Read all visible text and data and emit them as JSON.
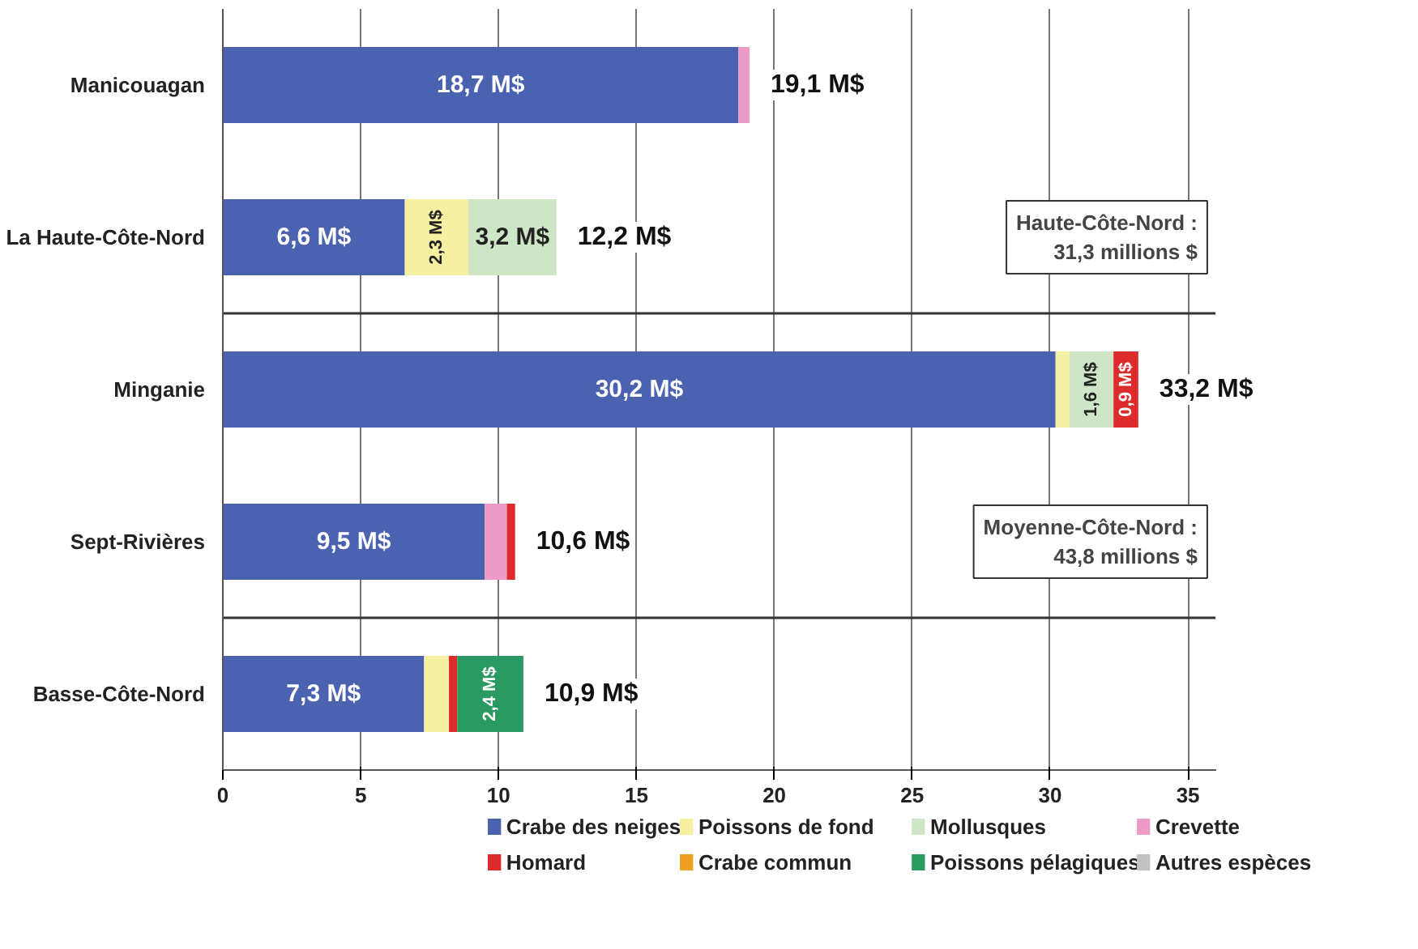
{
  "chart_data": {
    "type": "bar",
    "orientation": "horizontal",
    "stacked": true,
    "categories": [
      "Manicouagan",
      "La Haute-Côte-Nord",
      "Minganie",
      "Sept-Rivières",
      "Basse-Côte-Nord"
    ],
    "series": [
      {
        "name": "Crabe des neiges",
        "color": "#4a62b0",
        "values": [
          18.7,
          6.6,
          30.2,
          9.5,
          7.3
        ],
        "value_labels": [
          "18,7 M$",
          "6,6 M$",
          "30,2 M$",
          "9,5 M$",
          "7,3 M$"
        ]
      },
      {
        "name": "Poissons de fond",
        "color": "#f6f0a2",
        "values": [
          null,
          2.3,
          0.5,
          null,
          0.9
        ],
        "value_labels": [
          null,
          "2,3 M$",
          null,
          null,
          null
        ]
      },
      {
        "name": "Mollusques",
        "color": "#cfe6c6",
        "values": [
          null,
          3.2,
          1.6,
          null,
          null
        ],
        "value_labels": [
          null,
          "3,2 M$",
          "1,6 M$",
          null,
          null
        ]
      },
      {
        "name": "Crevette",
        "color": "#ee9ac6",
        "values": [
          0.4,
          null,
          null,
          0.8,
          null
        ],
        "value_labels": [
          null,
          null,
          null,
          null,
          null
        ]
      },
      {
        "name": "Homard",
        "color": "#dd2a2a",
        "values": [
          null,
          null,
          0.9,
          0.3,
          0.3
        ],
        "value_labels": [
          null,
          null,
          "0,9 M$",
          null,
          null
        ]
      },
      {
        "name": "Crabe commun",
        "color": "#ef9f22",
        "values": [
          null,
          null,
          null,
          null,
          null
        ],
        "value_labels": [
          null,
          null,
          null,
          null,
          null
        ]
      },
      {
        "name": "Poissons pélagiques",
        "color": "#2b9a62",
        "values": [
          null,
          null,
          null,
          null,
          2.4
        ],
        "value_labels": [
          null,
          null,
          null,
          null,
          "2,4 M$"
        ]
      },
      {
        "name": "Autres espèces",
        "color": "#c2c2c2",
        "values": [
          null,
          null,
          null,
          null,
          null
        ],
        "value_labels": [
          null,
          null,
          null,
          null,
          null
        ]
      }
    ],
    "totals": [
      "19,1 M$",
      "12,2 M$",
      "33,2 M$",
      "10,6 M$",
      "10,9 M$"
    ],
    "xlim": [
      0,
      36
    ],
    "xticks": [
      0,
      5,
      10,
      15,
      20,
      25,
      30,
      35
    ],
    "grid": "x",
    "legend": "bottom",
    "annotations": [
      "Haute-Côte-Nord :\n31,3 millions $",
      "Moyenne-Côte-Nord :\n43,8 millions $"
    ]
  }
}
